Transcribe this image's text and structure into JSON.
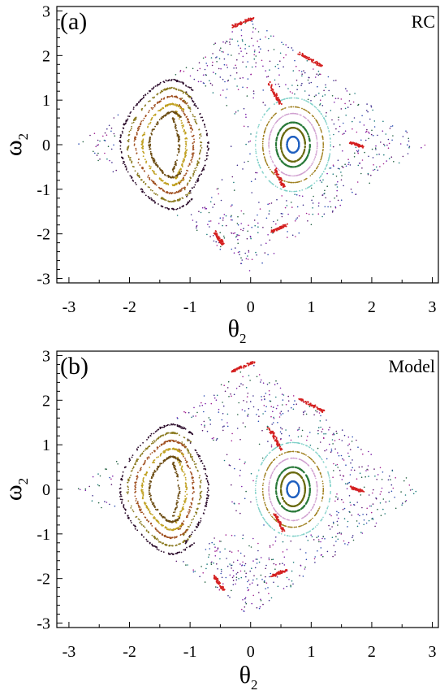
{
  "chart_data": [
    {
      "type": "scatter",
      "panel_tag": "(a)",
      "corner_label": "RC",
      "xlabel": "θ",
      "xlabel_sub": "2",
      "ylabel": "ω",
      "ylabel_sub": "2",
      "xlim": [
        -3.2,
        3.1
      ],
      "ylim": [
        -3.1,
        3.1
      ],
      "xticks": [
        "-3",
        "-2",
        "-1",
        "0",
        "1",
        "2",
        "3"
      ],
      "yticks": [
        "3",
        "2",
        "1",
        "0",
        "-1",
        "-2",
        "-3"
      ],
      "grid": false,
      "description_series": [
        {
          "kind": "chaotic-sea",
          "color": "#7a1fa8"
        },
        {
          "kind": "left-island",
          "center": [
            -1.3,
            0.0
          ],
          "color": "#8a7a20"
        },
        {
          "kind": "right-island",
          "center": [
            0.7,
            0.0
          ],
          "color": "#2a7a3a"
        },
        {
          "kind": "resonance-chain",
          "color": "#d42020"
        }
      ]
    },
    {
      "type": "scatter",
      "panel_tag": "(b)",
      "corner_label": "Model",
      "xlabel": "θ",
      "xlabel_sub": "2",
      "ylabel": "ω",
      "ylabel_sub": "2",
      "xlim": [
        -3.2,
        3.1
      ],
      "ylim": [
        -3.1,
        3.1
      ],
      "xticks": [
        "-3",
        "-2",
        "-1",
        "0",
        "1",
        "2",
        "3"
      ],
      "yticks": [
        "3",
        "2",
        "1",
        "0",
        "-1",
        "-2",
        "-3"
      ],
      "grid": false,
      "description_series": [
        {
          "kind": "chaotic-sea",
          "color": "#7a1fa8"
        },
        {
          "kind": "left-island",
          "center": [
            -1.3,
            0.0
          ],
          "color": "#8a7a20"
        },
        {
          "kind": "right-island",
          "center": [
            0.7,
            0.0
          ],
          "color": "#2a7a3a"
        },
        {
          "kind": "resonance-chain",
          "color": "#d42020"
        }
      ]
    }
  ]
}
